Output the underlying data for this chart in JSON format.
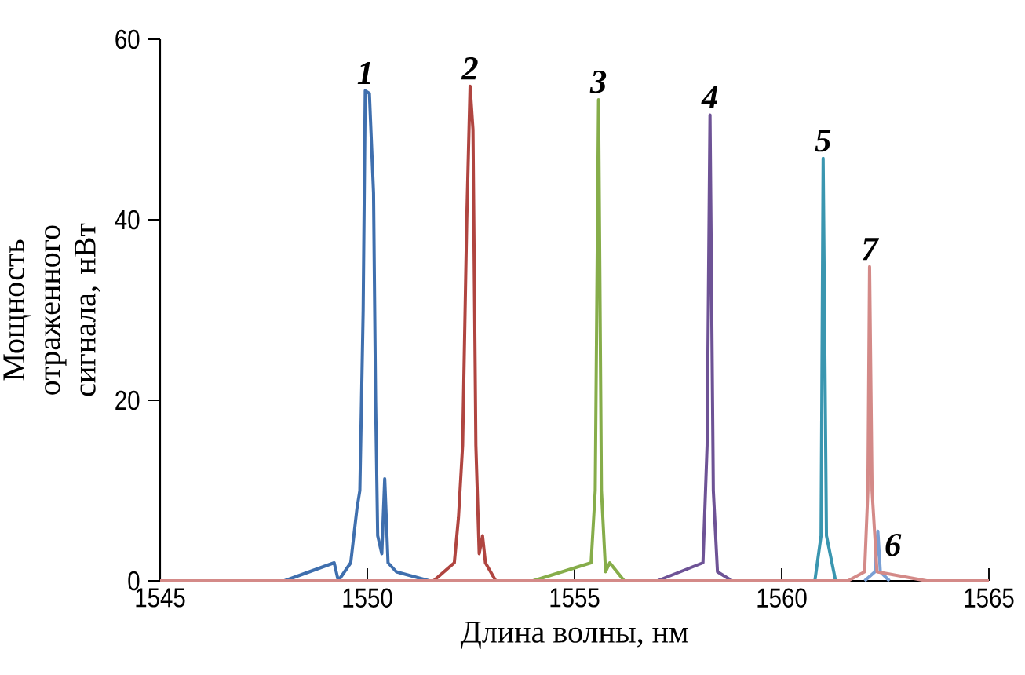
{
  "chart_data": {
    "type": "line",
    "xlabel": "Длина волны, нм",
    "ylabel": "Мощность отраженного сигнала, нВт",
    "xlim": [
      1545,
      1565
    ],
    "xticks": [
      1545,
      1550,
      1555,
      1560,
      1565
    ],
    "ylim": [
      0,
      60
    ],
    "yticks": [
      0,
      20,
      40,
      60
    ],
    "marker": "none",
    "line_style": "solid",
    "series": [
      {
        "color": "#3f6fae",
        "x": [
          1548.0,
          1549.2,
          1549.3,
          1549.6,
          1549.75,
          1549.82,
          1549.9,
          1549.95,
          1550.05,
          1550.15,
          1550.2,
          1550.25,
          1550.35,
          1550.42,
          1550.5,
          1550.7,
          1551.5
        ],
        "values": [
          0,
          2,
          0,
          2,
          8,
          10,
          30,
          54.3,
          54,
          43,
          20,
          5,
          3,
          11.3,
          2,
          1,
          0
        ]
      },
      {
        "color": "#b04540",
        "x": [
          1551.0,
          1551.6,
          1552.1,
          1552.2,
          1552.3,
          1552.4,
          1552.48,
          1552.55,
          1552.62,
          1552.7,
          1552.78,
          1552.85,
          1553.1,
          1554.5
        ],
        "values": [
          0,
          0,
          2,
          7,
          15,
          40,
          54.8,
          50,
          15,
          3,
          5,
          2,
          0,
          0
        ]
      },
      {
        "color": "#86ad4a",
        "x": [
          1554.0,
          1555.4,
          1555.5,
          1555.58,
          1555.65,
          1555.75,
          1555.85,
          1556.2,
          1557.0
        ],
        "values": [
          0,
          2,
          10,
          53.3,
          10,
          1,
          2,
          0,
          0
        ]
      },
      {
        "color": "#6e5396",
        "x": [
          1557.0,
          1558.1,
          1558.2,
          1558.27,
          1558.35,
          1558.45,
          1558.8,
          1559.5
        ],
        "values": [
          0,
          2,
          15,
          51.6,
          10,
          1,
          0,
          0
        ]
      },
      {
        "color": "#3a96b0",
        "x": [
          1560.2,
          1560.8,
          1560.95,
          1561.0,
          1561.08,
          1561.3,
          1561.6
        ],
        "values": [
          0,
          0,
          5,
          46.8,
          5,
          0,
          0
        ]
      },
      {
        "color": "#7a9fd4",
        "x": [
          1562.0,
          1562.25,
          1562.32,
          1562.38,
          1562.6
        ],
        "values": [
          0,
          1,
          5.5,
          1,
          0
        ]
      },
      {
        "color": "#d48a88",
        "x": [
          1545.0,
          1561.6,
          1562.0,
          1562.08,
          1562.12,
          1562.18,
          1562.3,
          1563.5,
          1565.0
        ],
        "values": [
          0,
          0,
          1,
          10,
          34.8,
          10,
          1,
          0,
          0
        ]
      }
    ],
    "annotations": [
      {
        "text": "1",
        "x": 1549.95,
        "y": 54.3
      },
      {
        "text": "2",
        "x": 1552.48,
        "y": 54.8
      },
      {
        "text": "3",
        "x": 1555.58,
        "y": 53.3
      },
      {
        "text": "4",
        "x": 1558.27,
        "y": 51.6
      },
      {
        "text": "5",
        "x": 1561.0,
        "y": 46.8
      },
      {
        "text": "6",
        "x": 1562.32,
        "y": 5.5
      },
      {
        "text": "7",
        "x": 1562.12,
        "y": 34.8
      }
    ]
  }
}
